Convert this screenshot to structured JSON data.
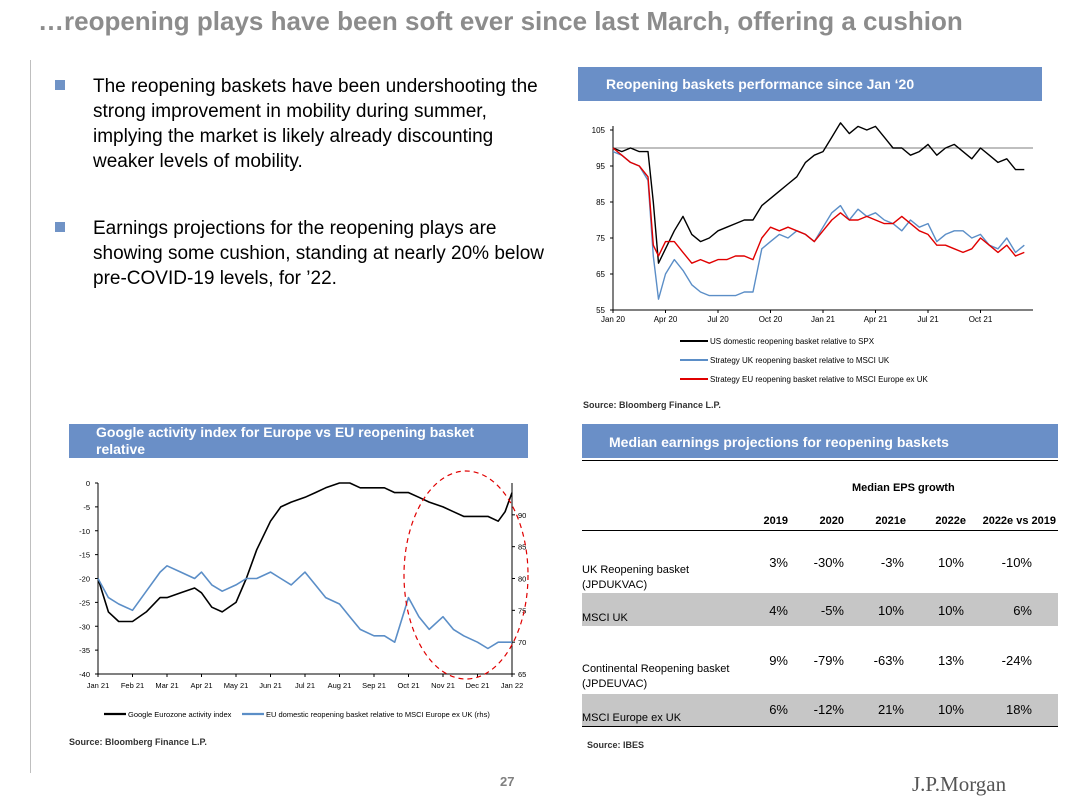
{
  "title": "…reopening plays have been soft ever since last March, offering a cushion",
  "bullets": [
    "The reopening baskets have been undershooting the strong improvement in mobility during summer, implying the market is likely already discounting weaker levels of mobility.",
    "Earnings projections for the reopening plays are showing some cushion, standing at nearly 20% below pre-COVID-19 levels, for ’22."
  ],
  "charts": {
    "perf": {
      "header": "Reopening  baskets performance since Jan ‘20",
      "source": "Source: Bloomberg Finance L.P."
    },
    "google": {
      "header": "Google activity index for Europe vs EU reopening basket relative",
      "source": "Source: Bloomberg Finance L.P."
    },
    "earnings": {
      "header": "Median earnings projections for reopening baskets",
      "source": "Source: IBES"
    }
  },
  "colors": {
    "header_bar": "#6a8fc7",
    "us_line": "#000000",
    "uk_line": "#5b8ec7",
    "eu_line": "#e00000",
    "highlight_circle": "#e00000"
  },
  "chart_data": [
    {
      "type": "line",
      "title": "Reopening  baskets performance since Jan ‘20",
      "x_labels": [
        "Jan 20",
        "Apr 20",
        "Jul 20",
        "Oct 20",
        "Jan 21",
        "Apr 21",
        "Jul 21",
        "Oct 21"
      ],
      "y_ticks": [
        "55",
        "65",
        "75",
        "85",
        "95",
        "105"
      ],
      "ylim": [
        55,
        105
      ],
      "reference_line": 100,
      "x_months": [
        0,
        0.5,
        1,
        1.5,
        2,
        2.3,
        2.6,
        3,
        3.5,
        4,
        4.5,
        5,
        5.5,
        6,
        6.5,
        7,
        7.5,
        8,
        8.5,
        9,
        9.5,
        10,
        10.5,
        11,
        11.5,
        12,
        12.5,
        13,
        13.5,
        14,
        14.5,
        15,
        15.5,
        16,
        16.5,
        17,
        17.5,
        18,
        18.5,
        19,
        19.5,
        20,
        20.5,
        21,
        21.5,
        22,
        22.5,
        23,
        23.5
      ],
      "series": [
        {
          "name": "US domestic reopening basket relative to SPX",
          "values": [
            100,
            99,
            100,
            99,
            99,
            85,
            68,
            72,
            77,
            81,
            76,
            74,
            75,
            77,
            78,
            79,
            80,
            80,
            84,
            86,
            88,
            90,
            92,
            96,
            98,
            99,
            103,
            107,
            104,
            106,
            105,
            106,
            103,
            100,
            100,
            98,
            99,
            101,
            98,
            100,
            101,
            99,
            97,
            100,
            98,
            96,
            97,
            94,
            94
          ]
        },
        {
          "name": "Strategy UK reopening basket relative to MSCI UK",
          "values": [
            99,
            98,
            96,
            95,
            91,
            70,
            58,
            65,
            69,
            66,
            62,
            60,
            59,
            59,
            59,
            59,
            60,
            60,
            72,
            74,
            76,
            75,
            77,
            76,
            74,
            78,
            82,
            84,
            80,
            83,
            81,
            82,
            80,
            79,
            77,
            80,
            78,
            79,
            74,
            76,
            77,
            77,
            75,
            76,
            73,
            72,
            75,
            71,
            73
          ]
        },
        {
          "name": "Strategy EU reopening basket relative to MSCI Europe ex UK",
          "values": [
            100,
            98,
            96,
            95,
            92,
            73,
            70,
            74,
            74,
            71,
            68,
            69,
            68,
            69,
            69,
            70,
            70,
            69,
            75,
            78,
            77,
            78,
            77,
            76,
            74,
            77,
            80,
            82,
            80,
            80,
            81,
            80,
            79,
            79,
            81,
            79,
            77,
            76,
            73,
            73,
            72,
            71,
            72,
            75,
            73,
            71,
            73,
            70,
            71
          ]
        }
      ]
    },
    {
      "type": "line",
      "title": "Google activity index for Europe vs EU reopening basket relative",
      "x_labels": [
        "Jan 21",
        "Feb 21",
        "Mar 21",
        "Apr 21",
        "May 21",
        "Jun 21",
        "Jul 21",
        "Aug 21",
        "Sep 21",
        "Oct 21",
        "Nov 21",
        "Dec 21",
        "Jan 22"
      ],
      "y_left_ticks": [
        "-40",
        "-35",
        "-30",
        "-25",
        "-20",
        "-15",
        "-10",
        "-5",
        "0"
      ],
      "y_right_ticks": [
        "65",
        "70",
        "75",
        "80",
        "85",
        "90"
      ],
      "ylim_left": [
        -40,
        0
      ],
      "ylim_right": [
        65,
        95
      ],
      "x_months": [
        0,
        0.3,
        0.6,
        1,
        1.4,
        1.8,
        2,
        2.4,
        2.8,
        3,
        3.3,
        3.6,
        4,
        4.3,
        4.6,
        5,
        5.3,
        5.6,
        6,
        6.3,
        6.6,
        7,
        7.3,
        7.6,
        8,
        8.3,
        8.6,
        9,
        9.3,
        9.6,
        10,
        10.3,
        10.6,
        11,
        11.3,
        11.6,
        11.8,
        12
      ],
      "series": [
        {
          "name": "Google Eurozone activity index",
          "axis": "left",
          "values": [
            -20,
            -27,
            -29,
            -29,
            -27,
            -24,
            -24,
            -23,
            -22,
            -23,
            -26,
            -27,
            -25,
            -20,
            -14,
            -8,
            -5,
            -4,
            -3,
            -2,
            -1,
            0,
            0,
            -1,
            -1,
            -1,
            -2,
            -2,
            -3,
            -4,
            -5,
            -6,
            -7,
            -7,
            -7,
            -8,
            -6,
            -2
          ]
        },
        {
          "name": "EU domestic reopening basket relative to MSCI Europe ex UK (rhs)",
          "axis": "right",
          "values": [
            80,
            77,
            76,
            75,
            78,
            81,
            82,
            81,
            80,
            81,
            79,
            78,
            79,
            80,
            80,
            81,
            80,
            79,
            81,
            79,
            77,
            76,
            74,
            72,
            71,
            71,
            70,
            77,
            74,
            72,
            74,
            72,
            71,
            70,
            69,
            70,
            70,
            70
          ]
        }
      ]
    },
    {
      "type": "table",
      "title": "Median earnings projections for reopening baskets",
      "group_header": "Median EPS growth",
      "columns": [
        "2019",
        "2020",
        "2021e",
        "2022e",
        "2022e vs 2019"
      ],
      "rows": [
        {
          "label": "UK Reopening basket (JPDUKVAC)",
          "values": [
            "3%",
            "-30%",
            "-3%",
            "10%",
            "-10%"
          ]
        },
        {
          "label": "MSCI UK",
          "values": [
            "4%",
            "-5%",
            "10%",
            "10%",
            "6%"
          ]
        },
        {
          "label": "Continental Reopening basket (JPDEUVAC)",
          "values": [
            "9%",
            "-79%",
            "-63%",
            "13%",
            "-24%"
          ]
        },
        {
          "label": "MSCI Europe ex UK",
          "values": [
            "6%",
            "-12%",
            "21%",
            "10%",
            "18%"
          ]
        }
      ]
    }
  ],
  "footer": {
    "page_number": "27",
    "logo": "J.P.Morgan"
  }
}
